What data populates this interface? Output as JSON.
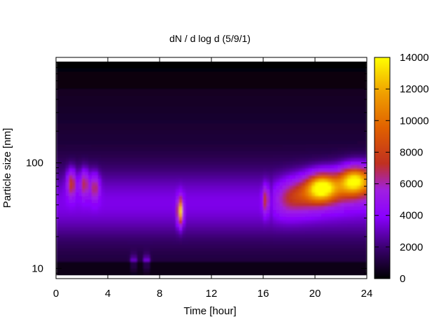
{
  "chart_data": {
    "type": "heatmap",
    "title": "dN / d log d (5/9/1)",
    "xlabel": "Time [hour]",
    "ylabel": "Particle size [nm]",
    "x_range": [
      0,
      24
    ],
    "x_ticks": [
      0,
      4,
      8,
      12,
      16,
      20,
      24
    ],
    "x_tick_labels": [
      "0",
      "4",
      "8",
      "12",
      "16",
      "20",
      "24"
    ],
    "y_scale": "log",
    "y_range_nm": [
      8,
      1000
    ],
    "y_ticks": [
      10,
      100
    ],
    "y_tick_labels": [
      "10",
      "100"
    ],
    "colorbar": {
      "range": [
        0,
        14000
      ],
      "ticks": [
        0,
        2000,
        4000,
        6000,
        8000,
        10000,
        12000,
        14000
      ],
      "tick_labels": [
        "0",
        "2000",
        "4000",
        "6000",
        "8000",
        "10000",
        "12000",
        "14000"
      ],
      "colormap": [
        "#000000",
        "#3a0070",
        "#8a00ff",
        "#a020e0",
        "#c03020",
        "#e06000",
        "#f0a000",
        "#ffff00"
      ]
    },
    "features": [
      {
        "time_hour": 1.2,
        "size_nm": 65,
        "value": 7000
      },
      {
        "time_hour": 2.2,
        "size_nm": 65,
        "value": 6200
      },
      {
        "time_hour": 3.0,
        "size_nm": 60,
        "value": 5800
      },
      {
        "time_hour": 6.0,
        "size_nm": 11,
        "value": 5000
      },
      {
        "time_hour": 7.0,
        "size_nm": 11,
        "value": 5500
      },
      {
        "time_hour": 9.6,
        "size_nm": 35,
        "value": 11000
      },
      {
        "time_hour": 16.2,
        "size_nm": 45,
        "value": 6500
      },
      {
        "time_hour": 20.5,
        "size_nm": 60,
        "value": 8500
      },
      {
        "time_hour": 23.0,
        "size_nm": 70,
        "value": 8000
      }
    ]
  }
}
